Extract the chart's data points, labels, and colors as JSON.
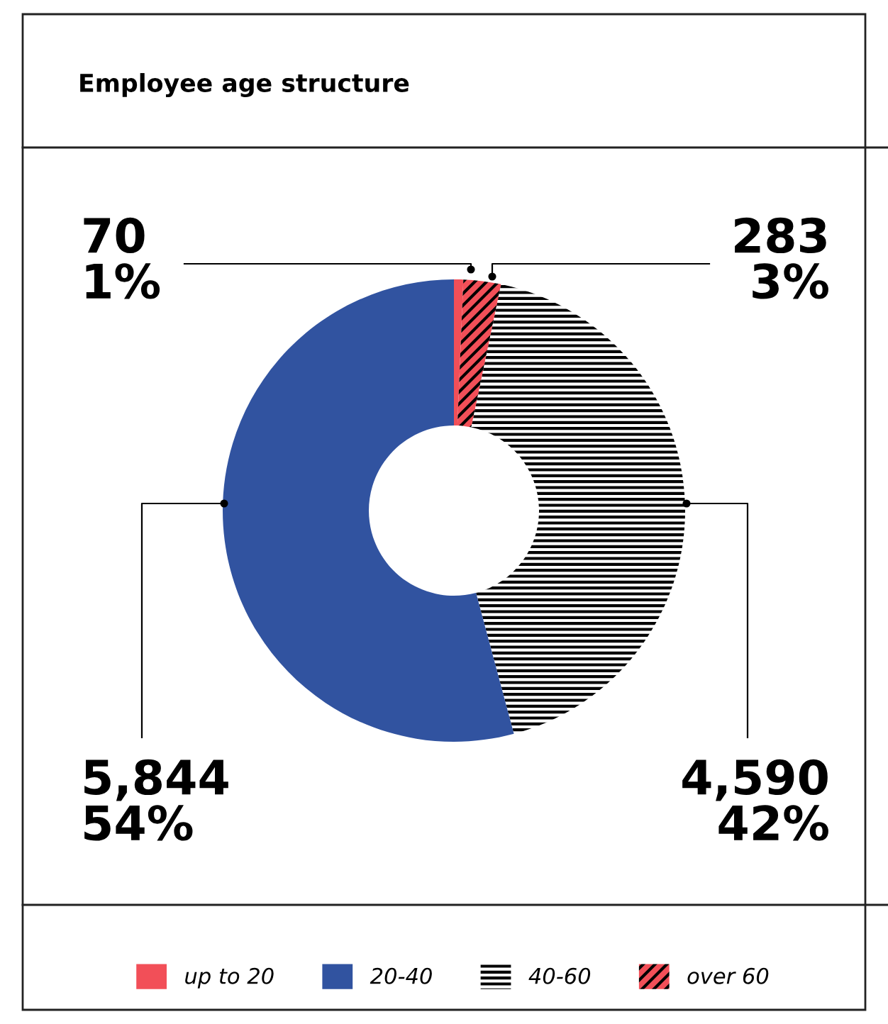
{
  "chart_data": {
    "type": "donut",
    "title": "Employee age structure",
    "categories": [
      "up to 20",
      "over 60",
      "40-60",
      "20-40"
    ],
    "values": [
      70,
      283,
      4590,
      5844
    ],
    "value_labels": [
      "70\n1%",
      "283\n3%",
      "4,590\n42%",
      "5,844\n54%"
    ],
    "colors": [
      "#f24f58",
      "#f24f58",
      "#ffffff",
      "#3153a0"
    ],
    "legend": "bottom"
  }
}
